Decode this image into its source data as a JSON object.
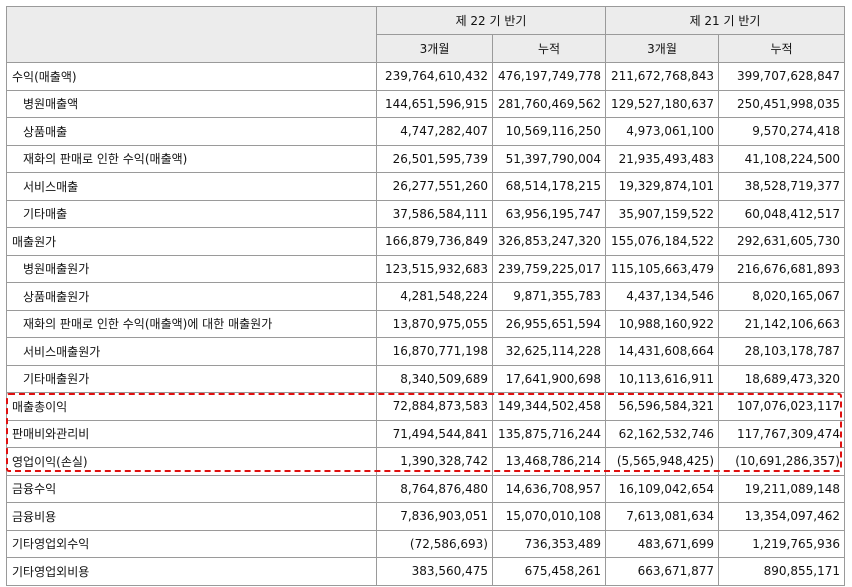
{
  "header": {
    "period_22": "제 22 기 반기",
    "period_21": "제 21 기 반기",
    "sub_3m": "3개월",
    "sub_cum": "누적"
  },
  "rows": [
    {
      "label": "수익(매출액)",
      "v": [
        "239,764,610,432",
        "476,197,749,778",
        "211,672,768,843",
        "399,707,628,847"
      ]
    },
    {
      "label": "병원매출액",
      "v": [
        "144,651,596,915",
        "281,760,469,562",
        "129,527,180,637",
        "250,451,998,035"
      ]
    },
    {
      "label": "상품매출",
      "v": [
        "4,747,282,407",
        "10,569,116,250",
        "4,973,061,100",
        "9,570,274,418"
      ]
    },
    {
      "label": "재화의 판매로 인한 수익(매출액)",
      "v": [
        "26,501,595,739",
        "51,397,790,004",
        "21,935,493,483",
        "41,108,224,500"
      ]
    },
    {
      "label": "서비스매출",
      "v": [
        "26,277,551,260",
        "68,514,178,215",
        "19,329,874,101",
        "38,528,719,377"
      ]
    },
    {
      "label": "기타매출",
      "v": [
        "37,586,584,111",
        "63,956,195,747",
        "35,907,159,522",
        "60,048,412,517"
      ]
    },
    {
      "label": "매출원가",
      "v": [
        "166,879,736,849",
        "326,853,247,320",
        "155,076,184,522",
        "292,631,605,730"
      ]
    },
    {
      "label": "병원매출원가",
      "v": [
        "123,515,932,683",
        "239,759,225,017",
        "115,105,663,479",
        "216,676,681,893"
      ]
    },
    {
      "label": "상품매출원가",
      "v": [
        "4,281,548,224",
        "9,871,355,783",
        "4,437,134,546",
        "8,020,165,067"
      ]
    },
    {
      "label": "재화의 판매로 인한 수익(매출액)에 대한 매출원가",
      "v": [
        "13,870,975,055",
        "26,955,651,594",
        "10,988,160,922",
        "21,142,106,663"
      ]
    },
    {
      "label": "서비스매출원가",
      "v": [
        "16,870,771,198",
        "32,625,114,228",
        "14,431,608,664",
        "28,103,178,787"
      ]
    },
    {
      "label": "기타매출원가",
      "v": [
        "8,340,509,689",
        "17,641,900,698",
        "10,113,616,911",
        "18,689,473,320"
      ]
    },
    {
      "label": "매출총이익",
      "v": [
        "72,884,873,583",
        "149,344,502,458",
        "56,596,584,321",
        "107,076,023,117"
      ]
    },
    {
      "label": "판매비와관리비",
      "v": [
        "71,494,544,841",
        "135,875,716,244",
        "62,162,532,746",
        "117,767,309,474"
      ]
    },
    {
      "label": "영업이익(손실)",
      "v": [
        "1,390,328,742",
        "13,468,786,214",
        "(5,565,948,425)",
        "(10,691,286,357)"
      ]
    },
    {
      "label": "금융수익",
      "v": [
        "8,764,876,480",
        "14,636,708,957",
        "16,109,042,654",
        "19,211,089,148"
      ]
    },
    {
      "label": "금융비용",
      "v": [
        "7,836,903,051",
        "15,070,010,108",
        "7,613,081,634",
        "13,354,097,462"
      ]
    },
    {
      "label": "기타영업외수익",
      "v": [
        "(72,586,693)",
        "736,353,489",
        "483,671,699",
        "1,219,765,936"
      ]
    },
    {
      "label": "기타영업외비용",
      "v": [
        "383,560,475",
        "675,458,261",
        "663,671,877",
        "890,855,171"
      ]
    }
  ],
  "highlight_color": "#e01010"
}
